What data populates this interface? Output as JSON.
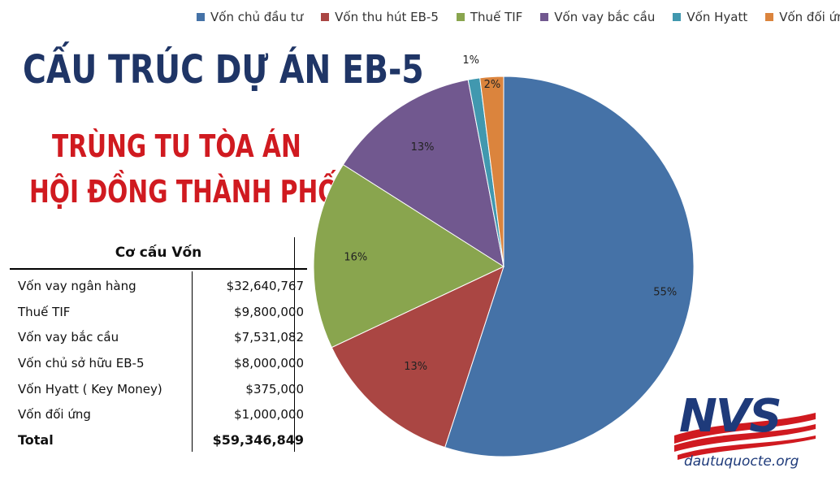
{
  "legend": [
    {
      "label": "Vốn chủ đầu tư",
      "color": "#4572a7"
    },
    {
      "label": "Vốn thu hút EB-5",
      "color": "#aa4643"
    },
    {
      "label": "Thuế TIF",
      "color": "#89a54e"
    },
    {
      "label": "Vốn vay bắc cầu",
      "color": "#71588f"
    },
    {
      "label": "Vốn Hyatt",
      "color": "#4198af"
    },
    {
      "label": "Vốn đối ứng",
      "color": "#db843d"
    }
  ],
  "heading": {
    "title": "CẤU TRÚC DỰ ÁN EB-5",
    "subtitle_line1": "TRÙNG TU TÒA ÁN",
    "subtitle_line2": "HỘI ĐỒNG THÀNH PHỐ"
  },
  "table": {
    "header": "Cơ cấu Vốn",
    "rows": [
      {
        "label": "Vốn vay ngân hàng",
        "value": "$32,640,767"
      },
      {
        "label": "Thuế TIF",
        "value": "$9,800,000"
      },
      {
        "label": "Vốn vay bắc cầu",
        "value": "$7,531,082"
      },
      {
        "label": "Vốn chủ sở hữu EB-5",
        "value": "$8,000,000"
      },
      {
        "label": "Vốn Hyatt ( Key Money)",
        "value": "$375,000"
      },
      {
        "label": "Vốn đối ứng",
        "value": "$1,000,000"
      }
    ],
    "total_label": "Total",
    "total_value": "$59,346,849"
  },
  "chart_data": {
    "type": "pie",
    "slices": [
      {
        "label": "Vốn chủ đầu tư",
        "value": 55,
        "display": "55%",
        "color": "#4572a7"
      },
      {
        "label": "Vốn thu hút EB-5",
        "value": 13,
        "display": "13%",
        "color": "#aa4643"
      },
      {
        "label": "Thuế TIF",
        "value": 16,
        "display": "16%",
        "color": "#89a54e"
      },
      {
        "label": "Vốn vay bắc cầu",
        "value": 13,
        "display": "13%",
        "color": "#71588f"
      },
      {
        "label": "Vốn Hyatt",
        "value": 1,
        "display": "1%",
        "color": "#4198af"
      },
      {
        "label": "Vốn đối ứng",
        "value": 2,
        "display": "2%",
        "color": "#db843d"
      }
    ],
    "legend_position": "top"
  },
  "logo": {
    "brand": "NVS",
    "url": "dautuquocte.org"
  }
}
